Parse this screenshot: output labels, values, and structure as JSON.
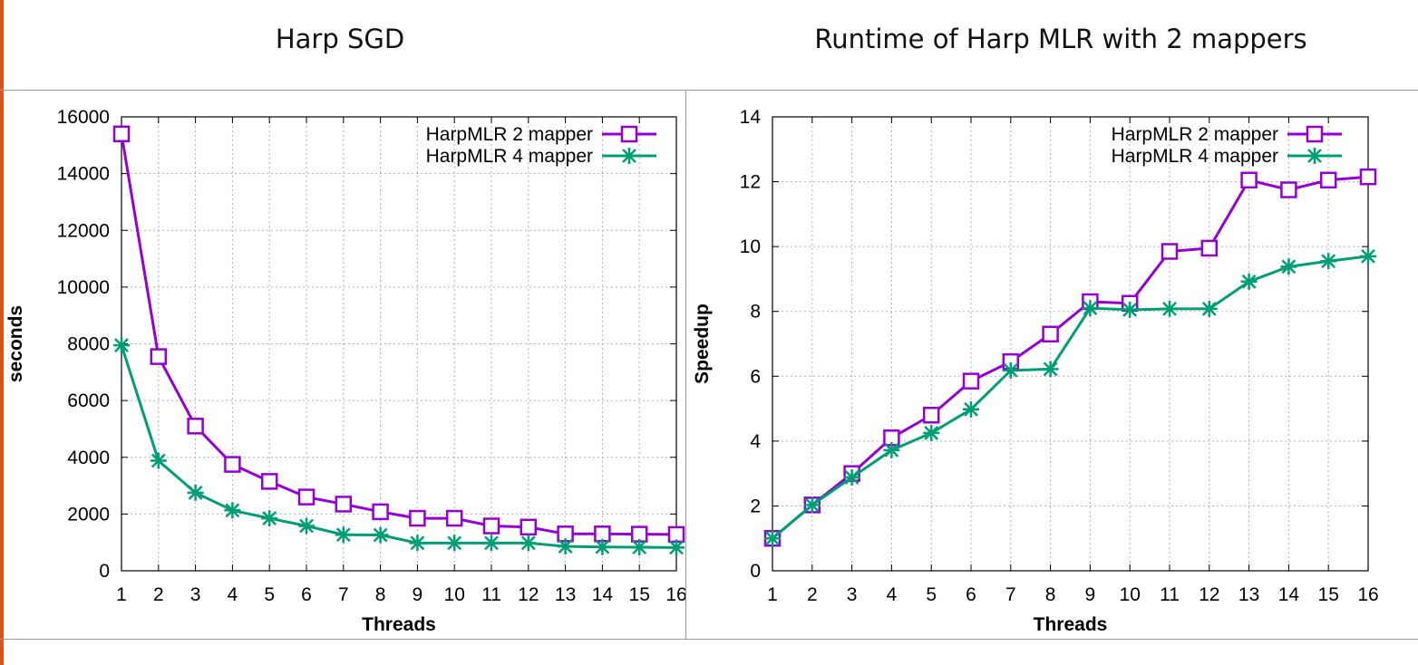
{
  "page": {
    "accent_color": "#d9531e",
    "titles": [
      "Harp SGD",
      "Runtime of Harp MLR with 2 mappers"
    ]
  },
  "chart_data": [
    {
      "type": "line",
      "title": "Harp SGD",
      "xlabel": "Threads",
      "ylabel": "seconds",
      "x": [
        1,
        2,
        3,
        4,
        5,
        6,
        7,
        8,
        9,
        10,
        11,
        12,
        13,
        14,
        15,
        16
      ],
      "xlim": [
        1,
        16
      ],
      "ylim": [
        0,
        16000
      ],
      "xticks": [
        1,
        2,
        3,
        4,
        5,
        6,
        7,
        8,
        9,
        10,
        11,
        12,
        13,
        14,
        15,
        16
      ],
      "yticks": [
        0,
        2000,
        4000,
        6000,
        8000,
        10000,
        12000,
        14000,
        16000
      ],
      "grid": true,
      "legend_position": "top-right",
      "series": [
        {
          "name": "HarpMLR 2 mapper",
          "color": "#9400d3",
          "marker": "square",
          "values": [
            15400,
            7550,
            5100,
            3750,
            3150,
            2600,
            2350,
            2080,
            1850,
            1850,
            1580,
            1540,
            1300,
            1300,
            1290,
            1280
          ]
        },
        {
          "name": "HarpMLR 4 mapper",
          "color": "#009e73",
          "marker": "star",
          "values": [
            7950,
            3880,
            2750,
            2130,
            1850,
            1580,
            1270,
            1260,
            980,
            980,
            980,
            980,
            860,
            840,
            830,
            820
          ]
        }
      ]
    },
    {
      "type": "line",
      "title": "Runtime of Harp MLR with 2 mappers",
      "xlabel": "Threads",
      "ylabel": "Speedup",
      "x": [
        1,
        2,
        3,
        4,
        5,
        6,
        7,
        8,
        9,
        10,
        11,
        12,
        13,
        14,
        15,
        16
      ],
      "xlim": [
        1,
        16
      ],
      "ylim": [
        0,
        14
      ],
      "xticks": [
        1,
        2,
        3,
        4,
        5,
        6,
        7,
        8,
        9,
        10,
        11,
        12,
        13,
        14,
        15,
        16
      ],
      "yticks": [
        0,
        2,
        4,
        6,
        8,
        10,
        12,
        14
      ],
      "grid": true,
      "legend_position": "top-right",
      "series": [
        {
          "name": "HarpMLR 2 mapper",
          "color": "#9400d3",
          "marker": "square",
          "values": [
            1,
            2.03,
            3.0,
            4.1,
            4.8,
            5.85,
            6.45,
            7.3,
            8.3,
            8.25,
            9.85,
            9.95,
            12.05,
            11.75,
            12.05,
            12.15
          ]
        },
        {
          "name": "HarpMLR 4 mapper",
          "color": "#009e73",
          "marker": "star",
          "values": [
            1,
            2.03,
            2.88,
            3.72,
            4.25,
            4.98,
            6.18,
            6.22,
            8.1,
            8.05,
            8.08,
            8.08,
            8.92,
            9.38,
            9.55,
            9.7
          ]
        }
      ]
    }
  ]
}
